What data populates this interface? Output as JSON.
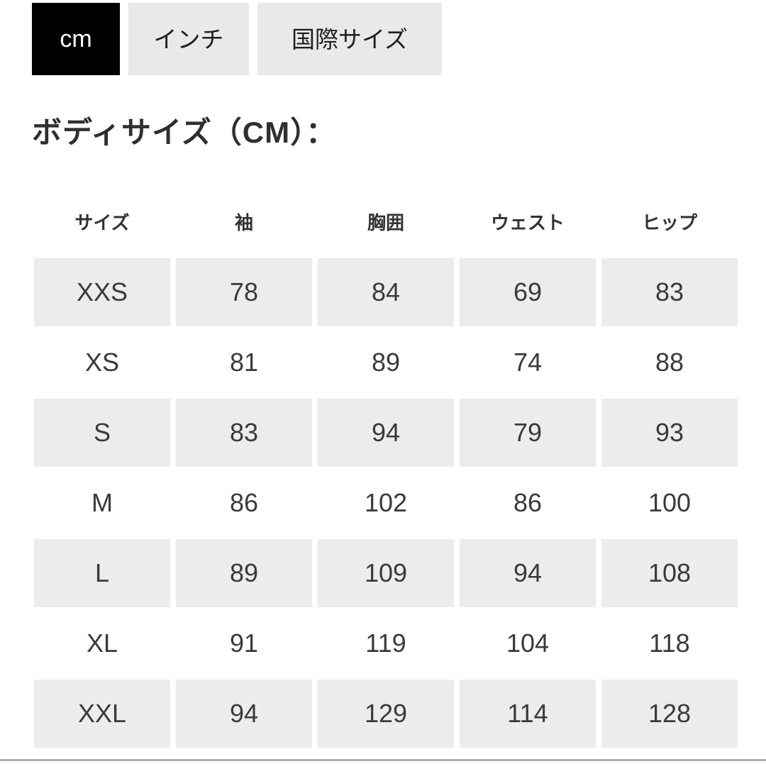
{
  "tabs": [
    {
      "label": "cm",
      "active": true
    },
    {
      "label": "インチ",
      "active": false
    },
    {
      "label": "国際サイズ",
      "active": false
    }
  ],
  "heading": "ボディサイズ（CM）：",
  "table": {
    "headers": [
      "サイズ",
      "袖",
      "胸囲",
      "ウェスト",
      "ヒップ"
    ],
    "rows": [
      {
        "size": "XXS",
        "sleeve": "78",
        "chest": "84",
        "waist": "69",
        "hip": "83"
      },
      {
        "size": "XS",
        "sleeve": "81",
        "chest": "89",
        "waist": "74",
        "hip": "88"
      },
      {
        "size": "S",
        "sleeve": "83",
        "chest": "94",
        "waist": "79",
        "hip": "93"
      },
      {
        "size": "M",
        "sleeve": "86",
        "chest": "102",
        "waist": "86",
        "hip": "100"
      },
      {
        "size": "L",
        "sleeve": "89",
        "chest": "109",
        "waist": "94",
        "hip": "108"
      },
      {
        "size": "XL",
        "sleeve": "91",
        "chest": "119",
        "waist": "104",
        "hip": "118"
      },
      {
        "size": "XXL",
        "sleeve": "94",
        "chest": "129",
        "waist": "114",
        "hip": "128"
      }
    ]
  },
  "colors": {
    "active_tab_bg": "#000000",
    "active_tab_text": "#ffffff",
    "inactive_tab_bg": "#e9e9e9",
    "row_shade_bg": "#ececec",
    "text": "#333333",
    "divider": "#b0b0b0"
  }
}
